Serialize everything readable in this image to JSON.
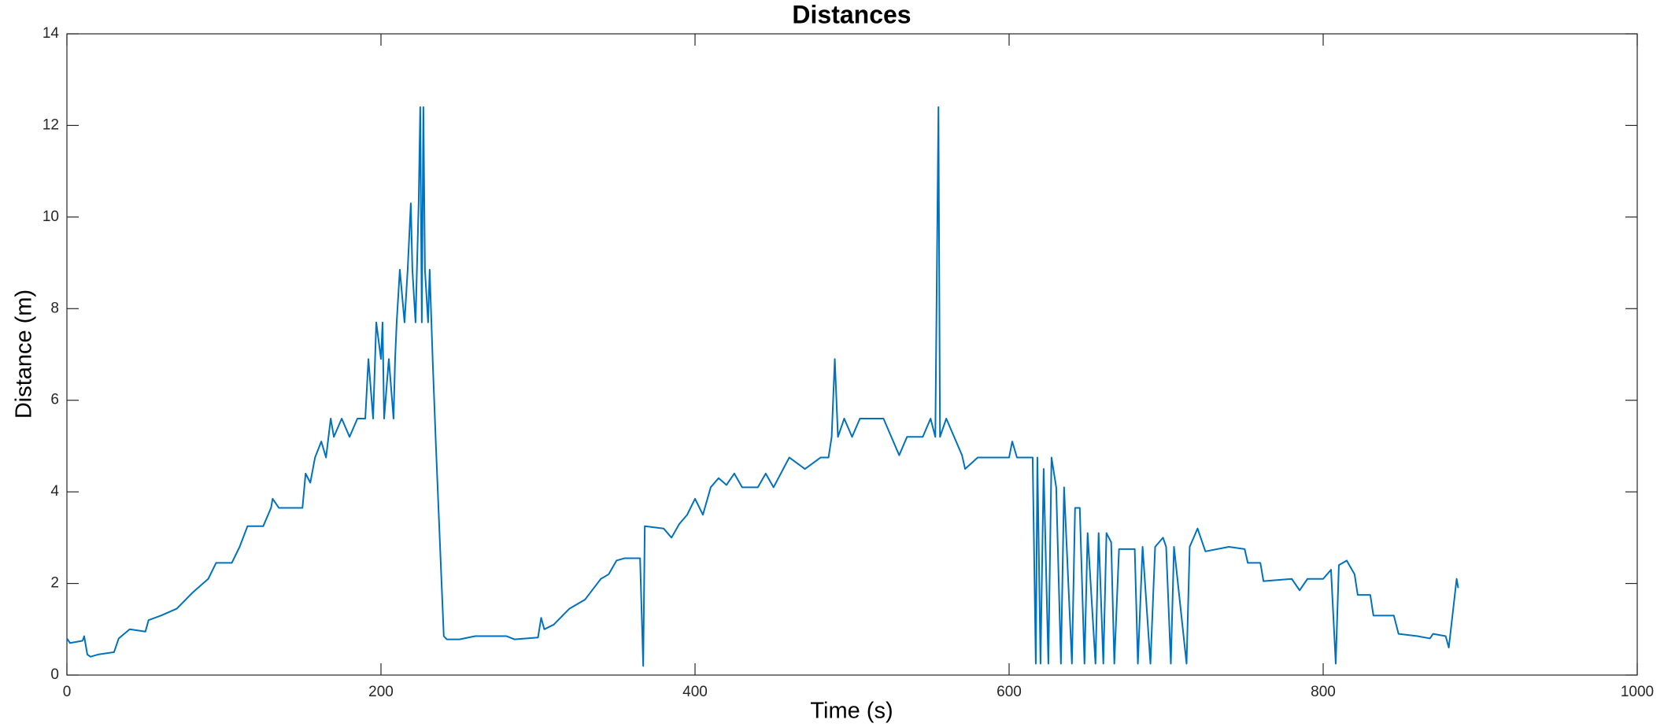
{
  "chart_data": {
    "type": "line",
    "title": "Distances",
    "x_label": "Time (s)",
    "y_label": "Distance (m)",
    "xlim": [
      0,
      1000
    ],
    "xticks": [
      0,
      200,
      400,
      600,
      800,
      1000
    ],
    "ylim": [
      0,
      14
    ],
    "yticks": [
      0,
      2,
      4,
      6,
      8,
      10,
      12,
      14
    ],
    "series": [
      {
        "color": "#0072bd",
        "x": [
          0,
          2,
          10,
          11,
          13,
          15,
          20,
          30,
          33,
          40,
          50,
          52,
          60,
          70,
          80,
          90,
          95,
          105,
          110,
          115,
          125,
          130,
          131,
          135,
          150,
          152,
          155,
          158,
          162,
          165,
          168,
          170,
          175,
          180,
          185,
          190,
          192,
          195,
          197,
          200,
          201,
          202,
          205,
          208,
          209,
          210,
          212,
          215,
          217,
          219,
          220,
          222,
          224,
          225,
          226,
          227,
          228,
          230,
          231,
          233,
          235,
          238,
          240,
          242,
          250,
          260,
          280,
          285,
          300,
          302,
          304,
          310,
          320,
          330,
          340,
          345,
          350,
          355,
          365,
          367,
          368,
          380,
          385,
          390,
          395,
          400,
          405,
          410,
          415,
          420,
          425,
          430,
          440,
          445,
          450,
          460,
          470,
          480,
          485,
          487,
          489,
          491,
          495,
          500,
          505,
          520,
          525,
          530,
          535,
          545,
          550,
          553,
          555,
          556,
          560,
          565,
          570,
          572,
          580,
          590,
          600,
          602,
          605,
          615,
          617,
          618,
          620,
          622,
          625,
          627,
          630,
          633,
          635,
          640,
          642,
          645,
          648,
          650,
          655,
          657,
          660,
          662,
          665,
          667,
          670,
          680,
          682,
          685,
          690,
          693,
          698,
          700,
          703,
          705,
          713,
          715,
          720,
          725,
          740,
          750,
          752,
          760,
          762,
          780,
          785,
          790,
          800,
          805,
          808,
          810,
          815,
          820,
          822,
          830,
          832,
          840,
          845,
          848,
          860,
          868,
          870,
          878,
          880,
          883,
          885,
          886
        ],
        "values": [
          0.8,
          0.7,
          0.75,
          0.85,
          0.45,
          0.4,
          0.45,
          0.5,
          0.8,
          1.0,
          0.95,
          1.2,
          1.3,
          1.45,
          1.8,
          2.1,
          2.45,
          2.45,
          2.8,
          3.25,
          3.25,
          3.65,
          3.85,
          3.65,
          3.65,
          4.4,
          4.2,
          4.75,
          5.1,
          4.75,
          5.6,
          5.2,
          5.6,
          5.2,
          5.6,
          5.6,
          6.9,
          5.6,
          7.7,
          6.9,
          7.7,
          5.6,
          6.9,
          5.6,
          6.9,
          7.7,
          8.85,
          7.7,
          8.85,
          10.3,
          8.85,
          7.7,
          10.3,
          12.4,
          7.7,
          12.4,
          8.85,
          7.7,
          8.85,
          6.8,
          5,
          2.5,
          0.85,
          0.78,
          0.78,
          0.85,
          0.85,
          0.78,
          0.82,
          1.25,
          1.0,
          1.1,
          1.45,
          1.65,
          2.1,
          2.2,
          2.5,
          2.55,
          2.55,
          0.2,
          3.25,
          3.2,
          3.0,
          3.3,
          3.5,
          3.85,
          3.5,
          4.1,
          4.3,
          4.15,
          4.4,
          4.1,
          4.1,
          4.4,
          4.1,
          4.75,
          4.5,
          4.75,
          4.75,
          5.2,
          6.9,
          5.2,
          5.6,
          5.2,
          5.6,
          5.6,
          5.2,
          4.8,
          5.2,
          5.2,
          5.6,
          5.2,
          12.4,
          5.2,
          5.6,
          5.2,
          4.8,
          4.5,
          4.75,
          4.75,
          4.75,
          5.1,
          4.75,
          4.75,
          0.25,
          4.75,
          0.25,
          4.5,
          0.25,
          4.75,
          4.1,
          0.25,
          4.1,
          0.25,
          3.65,
          3.65,
          0.25,
          3.1,
          0.25,
          3.1,
          0.25,
          3.1,
          2.9,
          0.25,
          2.75,
          2.75,
          0.25,
          2.8,
          0.25,
          2.8,
          3.0,
          2.8,
          0.25,
          2.8,
          0.25,
          2.8,
          3.2,
          2.7,
          2.8,
          2.75,
          2.45,
          2.45,
          2.05,
          2.1,
          1.85,
          2.1,
          2.1,
          2.3,
          0.25,
          2.4,
          2.5,
          2.2,
          1.75,
          1.75,
          1.3,
          1.3,
          1.3,
          0.9,
          0.85,
          0.8,
          0.9,
          0.85,
          0.6,
          1.5,
          2.1,
          1.9
        ]
      }
    ]
  }
}
